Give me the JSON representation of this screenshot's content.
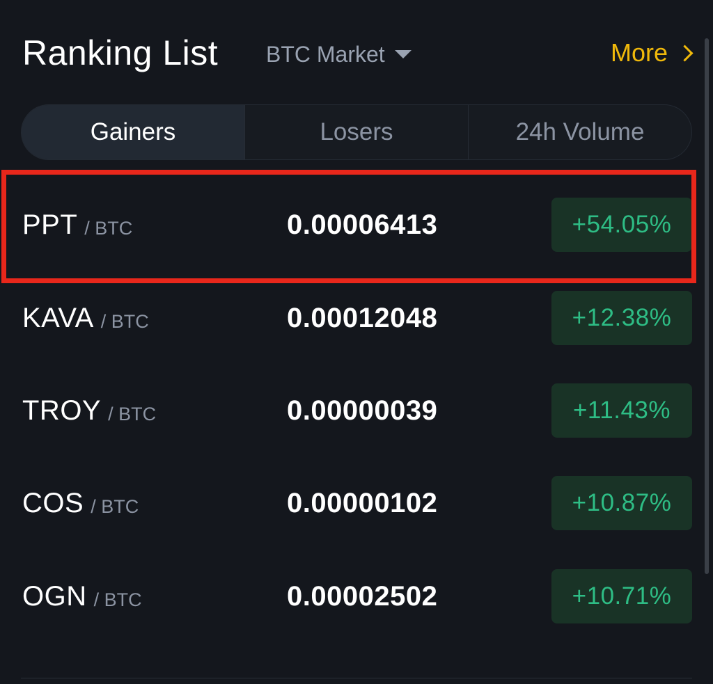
{
  "header": {
    "title": "Ranking List",
    "market_label": "BTC Market",
    "more_label": "More"
  },
  "tabs": [
    {
      "label": "Gainers",
      "active": true
    },
    {
      "label": "Losers",
      "active": false
    },
    {
      "label": "24h Volume",
      "active": false
    }
  ],
  "rows": [
    {
      "base": "PPT",
      "quote": "/ BTC",
      "price": "0.00006413",
      "change": "+54.05%"
    },
    {
      "base": "KAVA",
      "quote": "/ BTC",
      "price": "0.00012048",
      "change": "+12.38%"
    },
    {
      "base": "TROY",
      "quote": "/ BTC",
      "price": "0.00000039",
      "change": "+11.43%"
    },
    {
      "base": "COS",
      "quote": "/ BTC",
      "price": "0.00000102",
      "change": "+10.87%"
    },
    {
      "base": "OGN",
      "quote": "/ BTC",
      "price": "0.00002502",
      "change": "+10.71%"
    }
  ],
  "colors": {
    "background": "#14171d",
    "accent": "#f0b90b",
    "positive_text": "#2ebd85",
    "positive_bg": "#193326",
    "highlight": "#e8271b"
  },
  "icons": {
    "market_dropdown": "caret-down-icon",
    "more": "chevron-right-icon"
  }
}
